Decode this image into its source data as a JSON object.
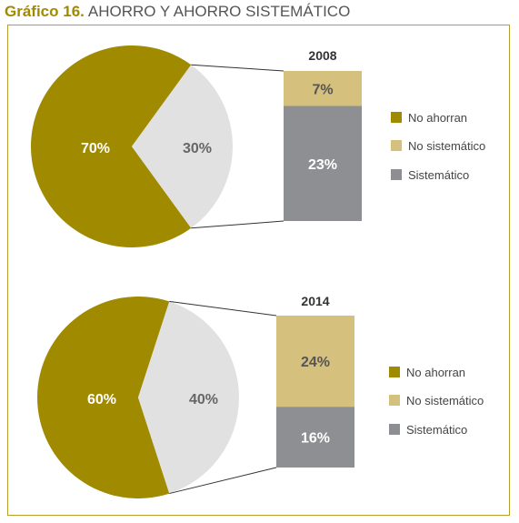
{
  "title": {
    "lead": "Gráfico 16.",
    "text": "AHORRO Y AHORRO SISTEMÁTICO"
  },
  "colors": {
    "no_ahorran": "#a08a00",
    "ahorran": "#e1e1e1",
    "no_sistematico": "#d5c07e",
    "sistematico": "#8e8f92",
    "frame": "#b79f2d"
  },
  "chart_data": [
    {
      "type": "pie",
      "year": "2008",
      "pie": [
        {
          "name": "No ahorran",
          "value": 70,
          "label": "70%"
        },
        {
          "name": "",
          "value": 30,
          "label": "30%"
        }
      ],
      "bar": [
        {
          "name": "No sistemático",
          "value": 7,
          "label": "7%"
        },
        {
          "name": "Sistemático",
          "value": 23,
          "label": "23%"
        }
      ],
      "legend": [
        "No ahorran",
        "No sistemático",
        "Sistemático"
      ]
    },
    {
      "type": "pie",
      "year": "2014",
      "pie": [
        {
          "name": "No ahorran",
          "value": 60,
          "label": "60%"
        },
        {
          "name": "",
          "value": 40,
          "label": "40%"
        }
      ],
      "bar": [
        {
          "name": "No sistemático",
          "value": 24,
          "label": "24%"
        },
        {
          "name": "Sistemático",
          "value": 16,
          "label": "16%"
        }
      ],
      "legend": [
        "No ahorran",
        "No sistemático",
        "Sistemático"
      ]
    }
  ]
}
